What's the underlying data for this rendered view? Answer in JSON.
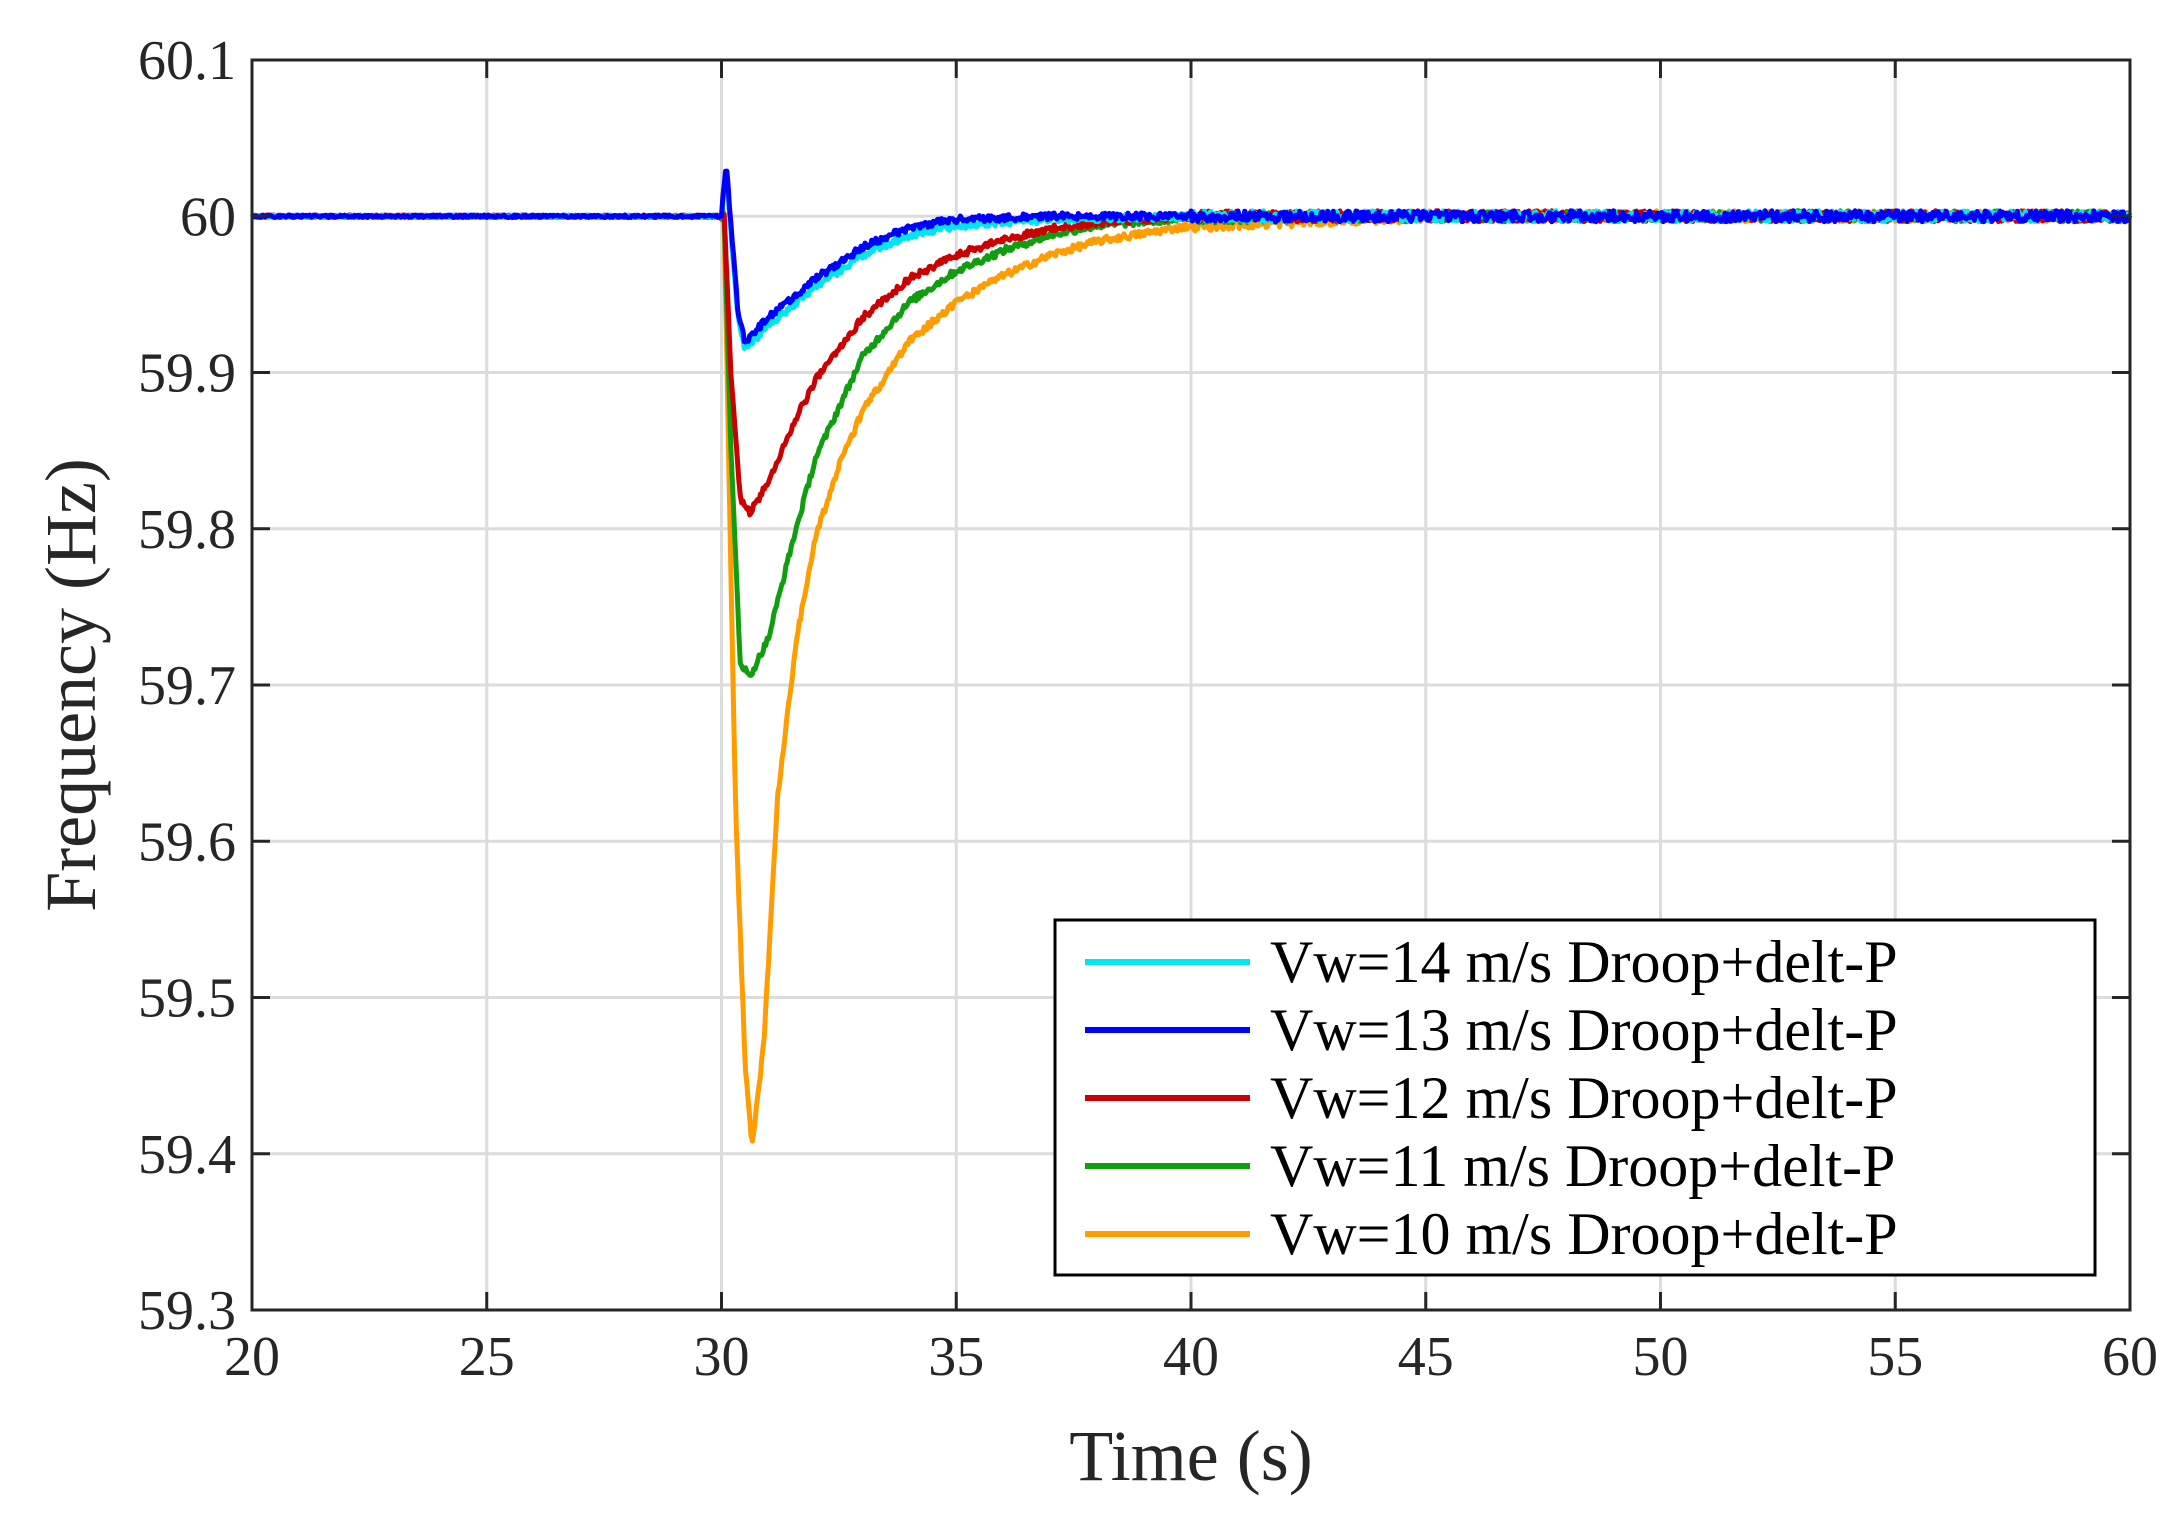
{
  "chart_data": {
    "type": "line",
    "title": "",
    "xlabel": "Time (s)",
    "ylabel": "Frequency (Hz)",
    "xlim": [
      20,
      60
    ],
    "ylim": [
      59.3,
      60.1
    ],
    "xticks": [
      "20",
      "25",
      "30",
      "35",
      "40",
      "45",
      "50",
      "55",
      "60"
    ],
    "yticks": [
      "59.3",
      "59.4",
      "59.5",
      "59.6",
      "59.7",
      "59.8",
      "59.9",
      "60",
      "60.1"
    ],
    "grid": true,
    "legend_position": "bottom-right",
    "series": [
      {
        "name": "Vw=14 m/s Droop+delt-P",
        "color": "#00e5ee",
        "x": [
          20,
          30.0,
          30.1,
          30.2,
          30.35,
          30.5,
          31,
          32,
          33,
          34,
          35,
          37,
          40,
          45,
          50,
          55,
          60
        ],
        "y": [
          60.0,
          60.0,
          60.03,
          59.99,
          59.935,
          59.915,
          59.93,
          59.955,
          59.975,
          59.988,
          59.994,
          59.998,
          60.0,
          60.0,
          60.0,
          60.0,
          60.0
        ]
      },
      {
        "name": "Vw=13 m/s Droop+delt-P",
        "color": "#0000ff",
        "x": [
          20,
          30.0,
          30.1,
          30.2,
          30.35,
          30.5,
          31,
          32,
          33,
          34,
          35,
          37,
          40,
          45,
          50,
          55,
          60
        ],
        "y": [
          60.0,
          60.0,
          60.035,
          59.995,
          59.94,
          59.92,
          59.935,
          59.96,
          59.98,
          59.993,
          59.998,
          60.0,
          60.0,
          60.0,
          60.0,
          60.0,
          60.0
        ]
      },
      {
        "name": "Vw=12 m/s Droop+delt-P",
        "color": "#cc0000",
        "x": [
          20,
          30.0,
          30.05,
          30.2,
          30.4,
          30.6,
          31,
          31.5,
          32,
          33,
          34,
          35,
          36,
          37,
          38,
          40,
          45,
          50,
          55,
          60
        ],
        "y": [
          60.0,
          60.0,
          60.005,
          59.9,
          59.82,
          59.81,
          59.83,
          59.865,
          59.895,
          59.935,
          59.96,
          59.975,
          59.985,
          59.992,
          59.996,
          60.0,
          60.0,
          60.0,
          60.0,
          60.0
        ]
      },
      {
        "name": "Vw=11 m/s Droop+delt-P",
        "color": "#109e10",
        "x": [
          20,
          30.0,
          30.05,
          30.2,
          30.4,
          30.6,
          31,
          31.5,
          32,
          33,
          34,
          35,
          36,
          37,
          38,
          40,
          45,
          50,
          55,
          60
        ],
        "y": [
          60.0,
          60.0,
          60.005,
          59.85,
          59.715,
          59.705,
          59.73,
          59.79,
          59.845,
          59.91,
          59.945,
          59.965,
          59.978,
          59.988,
          59.994,
          59.999,
          60.0,
          60.0,
          60.0,
          60.0
        ]
      },
      {
        "name": "Vw=10 m/s Droop+delt-P",
        "color": "#ff9c00",
        "x": [
          20,
          30.0,
          30.05,
          30.15,
          30.3,
          30.5,
          30.65,
          30.9,
          31.2,
          31.6,
          32,
          32.5,
          33,
          34,
          35,
          36,
          37,
          38,
          40,
          45,
          50,
          55,
          60
        ],
        "y": [
          60.0,
          60.0,
          60.005,
          59.85,
          59.62,
          59.46,
          59.405,
          59.47,
          59.63,
          59.73,
          59.795,
          59.84,
          59.875,
          59.92,
          59.945,
          59.962,
          59.975,
          59.984,
          59.994,
          60.0,
          60.0,
          60.0,
          60.0
        ]
      }
    ]
  }
}
